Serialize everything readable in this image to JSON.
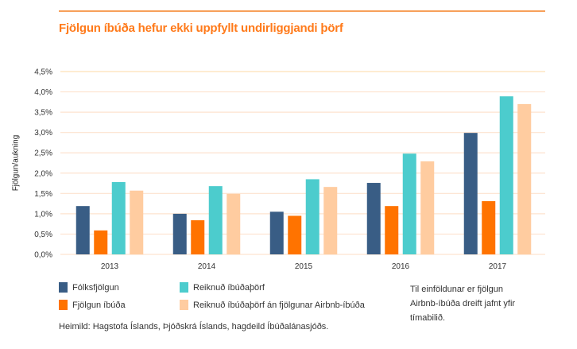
{
  "chart_data": {
    "type": "bar",
    "title": "Fjölgun íbúða hefur ekki uppfyllt undirliggjandi þörf",
    "ylabel": "Fjölgun/aukning",
    "xlabel": "",
    "ylim": [
      0,
      4.5
    ],
    "yticks": [
      "0,0%",
      "0,5%",
      "1,0%",
      "1,5%",
      "2,0%",
      "2,5%",
      "3,0%",
      "3,5%",
      "4,0%",
      "4,5%"
    ],
    "grid": true,
    "legend_position": "bottom",
    "categories": [
      "2013",
      "2014",
      "2015",
      "2016",
      "2017"
    ],
    "series": [
      {
        "name": "Fólksfjölgun",
        "color": "#395d85",
        "values": [
          1.19,
          1.0,
          1.05,
          1.76,
          2.99
        ]
      },
      {
        "name": "Fjölgun íbúða",
        "color": "#ff7300",
        "values": [
          0.59,
          0.84,
          0.95,
          1.19,
          1.31
        ]
      },
      {
        "name": "Reiknuð íbúðaþörf",
        "color": "#4ccccd",
        "values": [
          1.78,
          1.68,
          1.85,
          2.48,
          3.89
        ]
      },
      {
        "name": "Reiknuð íbúðaþörf án fjölgunar Airbnb-íbúða",
        "color": "#ffcca0",
        "values": [
          1.57,
          1.49,
          1.66,
          2.29,
          3.7
        ]
      }
    ]
  },
  "note": "Til einföldunar er fjölgun Airbnb-íbúða dreift jafnt yfir tímabilið.",
  "source": "Heimild: Hagstofa Íslands, Þjóðskrá Íslands, hagdeild Íbúðalánasjóðs."
}
